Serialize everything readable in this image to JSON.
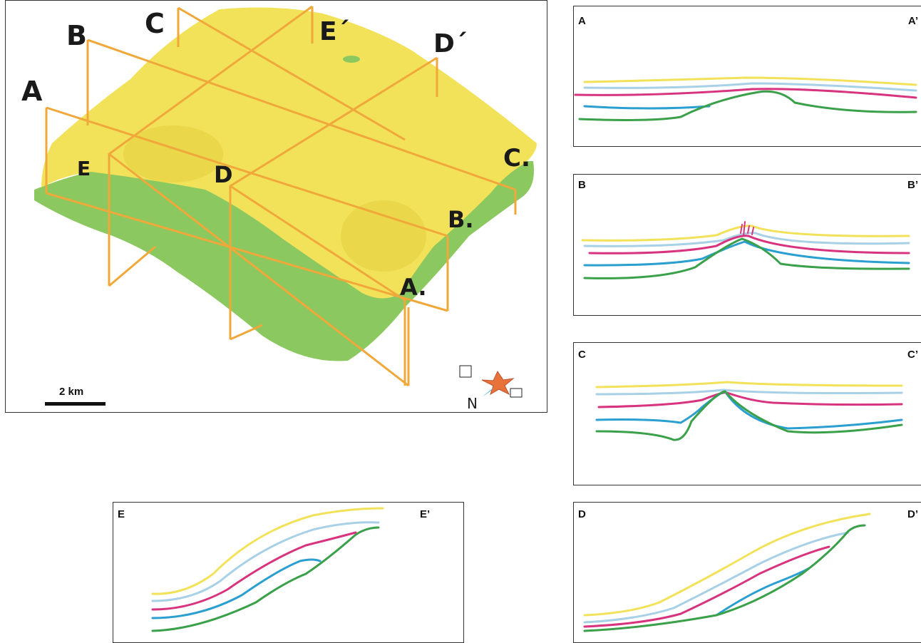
{
  "map": {
    "section_labels": {
      "A": "A",
      "B": "B",
      "C": "C",
      "D": "D",
      "E": "E",
      "A_end": "A.",
      "B_end": "B.",
      "C_end": "C.",
      "D_end": "D´",
      "E_end": "E´"
    },
    "scale_bar": "2 km",
    "north": "N",
    "colors": {
      "upper_surface": "#f2e25a",
      "lower_surface": "#8cc860",
      "section_lines": "#f0a83a"
    }
  },
  "sections": [
    {
      "id": "A",
      "left_label": "A",
      "right_label": "A’"
    },
    {
      "id": "B",
      "left_label": "B",
      "right_label": "B’"
    },
    {
      "id": "C",
      "left_label": "C",
      "right_label": "C’"
    },
    {
      "id": "E",
      "left_label": "E",
      "right_label": "E’"
    },
    {
      "id": "D",
      "left_label": "D",
      "right_label": "D’"
    }
  ],
  "horizon_colors": {
    "yellow": "#f2e25a",
    "light_blue": "#a8d0e6",
    "magenta": "#d8337e",
    "blue": "#2a9fd0",
    "green": "#3aa049"
  }
}
